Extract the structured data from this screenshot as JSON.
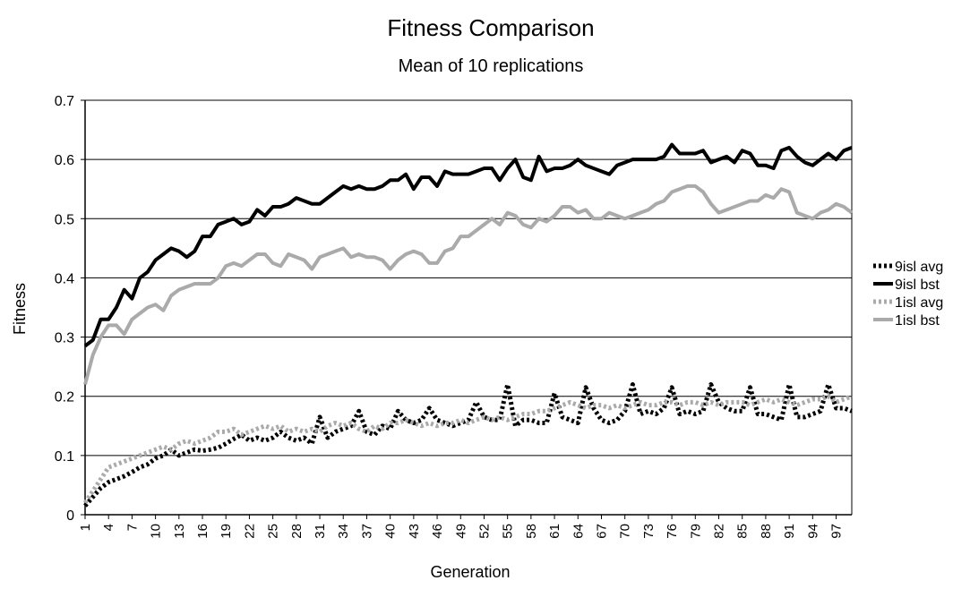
{
  "chart_data": {
    "type": "line",
    "title": "Fitness Comparison",
    "subtitle": "Mean of 10 replications",
    "xlabel": "Generation",
    "ylabel": "Fitness",
    "ylim": [
      0,
      0.7
    ],
    "yticks": [
      "0",
      "0.1",
      "0.2",
      "0.3",
      "0.4",
      "0.5",
      "0.6",
      "0.7"
    ],
    "x_range": [
      1,
      99
    ],
    "xtick_labels": [
      "1",
      "4",
      "7",
      "10",
      "13",
      "16",
      "19",
      "22",
      "25",
      "28",
      "31",
      "34",
      "37",
      "40",
      "43",
      "46",
      "49",
      "52",
      "55",
      "58",
      "61",
      "64",
      "67",
      "70",
      "73",
      "76",
      "79",
      "82",
      "85",
      "88",
      "91",
      "94",
      "97"
    ],
    "grid": "horizontal",
    "legend_position": "right",
    "series": [
      {
        "name": "9isl avg",
        "color": "#000000",
        "style": "dotted",
        "values": [
          0.015,
          0.03,
          0.045,
          0.055,
          0.06,
          0.065,
          0.072,
          0.08,
          0.085,
          0.095,
          0.1,
          0.11,
          0.1,
          0.105,
          0.11,
          0.108,
          0.11,
          0.113,
          0.12,
          0.128,
          0.135,
          0.125,
          0.13,
          0.125,
          0.13,
          0.14,
          0.13,
          0.125,
          0.13,
          0.12,
          0.165,
          0.13,
          0.14,
          0.145,
          0.15,
          0.175,
          0.14,
          0.135,
          0.15,
          0.145,
          0.175,
          0.16,
          0.155,
          0.16,
          0.18,
          0.16,
          0.155,
          0.15,
          0.155,
          0.16,
          0.19,
          0.165,
          0.16,
          0.16,
          0.22,
          0.15,
          0.16,
          0.16,
          0.155,
          0.155,
          0.205,
          0.165,
          0.16,
          0.155,
          0.215,
          0.18,
          0.16,
          0.155,
          0.16,
          0.175,
          0.22,
          0.17,
          0.175,
          0.17,
          0.18,
          0.215,
          0.17,
          0.175,
          0.17,
          0.175,
          0.22,
          0.19,
          0.18,
          0.175,
          0.175,
          0.215,
          0.17,
          0.17,
          0.165,
          0.16,
          0.22,
          0.165,
          0.165,
          0.17,
          0.175,
          0.22,
          0.18,
          0.18,
          0.175
        ]
      },
      {
        "name": "9isl bst",
        "color": "#000000",
        "style": "solid",
        "values": [
          0.285,
          0.295,
          0.33,
          0.33,
          0.35,
          0.38,
          0.365,
          0.4,
          0.41,
          0.43,
          0.44,
          0.45,
          0.445,
          0.435,
          0.445,
          0.47,
          0.47,
          0.49,
          0.495,
          0.5,
          0.49,
          0.495,
          0.515,
          0.505,
          0.52,
          0.52,
          0.525,
          0.535,
          0.53,
          0.525,
          0.525,
          0.535,
          0.545,
          0.555,
          0.55,
          0.555,
          0.55,
          0.55,
          0.555,
          0.565,
          0.565,
          0.575,
          0.55,
          0.57,
          0.57,
          0.555,
          0.58,
          0.575,
          0.575,
          0.575,
          0.58,
          0.585,
          0.585,
          0.565,
          0.585,
          0.6,
          0.57,
          0.565,
          0.605,
          0.58,
          0.585,
          0.585,
          0.59,
          0.6,
          0.59,
          0.585,
          0.58,
          0.575,
          0.59,
          0.595,
          0.6,
          0.6,
          0.6,
          0.6,
          0.605,
          0.625,
          0.61,
          0.61,
          0.61,
          0.615,
          0.595,
          0.6,
          0.605,
          0.595,
          0.615,
          0.61,
          0.59,
          0.59,
          0.585,
          0.615,
          0.62,
          0.605,
          0.595,
          0.59,
          0.6,
          0.61,
          0.6,
          0.615,
          0.62
        ]
      },
      {
        "name": "1isl avg",
        "color": "#aaaaaa",
        "style": "dotted",
        "values": [
          0.02,
          0.04,
          0.06,
          0.08,
          0.085,
          0.09,
          0.095,
          0.1,
          0.105,
          0.11,
          0.115,
          0.11,
          0.12,
          0.125,
          0.12,
          0.125,
          0.13,
          0.14,
          0.14,
          0.145,
          0.135,
          0.14,
          0.145,
          0.15,
          0.145,
          0.15,
          0.14,
          0.145,
          0.14,
          0.145,
          0.14,
          0.15,
          0.155,
          0.15,
          0.155,
          0.145,
          0.14,
          0.15,
          0.145,
          0.155,
          0.155,
          0.16,
          0.155,
          0.15,
          0.155,
          0.15,
          0.155,
          0.155,
          0.16,
          0.155,
          0.16,
          0.165,
          0.16,
          0.165,
          0.16,
          0.165,
          0.17,
          0.17,
          0.175,
          0.175,
          0.18,
          0.185,
          0.19,
          0.185,
          0.18,
          0.185,
          0.185,
          0.18,
          0.185,
          0.18,
          0.185,
          0.19,
          0.185,
          0.185,
          0.19,
          0.19,
          0.185,
          0.19,
          0.19,
          0.185,
          0.19,
          0.185,
          0.19,
          0.19,
          0.19,
          0.185,
          0.19,
          0.195,
          0.19,
          0.195,
          0.19,
          0.185,
          0.19,
          0.195,
          0.195,
          0.2,
          0.19,
          0.195,
          0.2
        ]
      },
      {
        "name": "1isl bst",
        "color": "#aaaaaa",
        "style": "solid",
        "values": [
          0.22,
          0.27,
          0.3,
          0.32,
          0.32,
          0.305,
          0.33,
          0.34,
          0.35,
          0.355,
          0.345,
          0.37,
          0.38,
          0.385,
          0.39,
          0.39,
          0.39,
          0.4,
          0.42,
          0.425,
          0.42,
          0.43,
          0.44,
          0.44,
          0.425,
          0.42,
          0.44,
          0.435,
          0.43,
          0.415,
          0.435,
          0.44,
          0.445,
          0.45,
          0.435,
          0.44,
          0.435,
          0.435,
          0.43,
          0.415,
          0.43,
          0.44,
          0.445,
          0.44,
          0.425,
          0.425,
          0.445,
          0.45,
          0.47,
          0.47,
          0.48,
          0.49,
          0.5,
          0.49,
          0.51,
          0.505,
          0.49,
          0.485,
          0.5,
          0.495,
          0.505,
          0.52,
          0.52,
          0.51,
          0.515,
          0.5,
          0.5,
          0.51,
          0.505,
          0.5,
          0.505,
          0.51,
          0.515,
          0.525,
          0.53,
          0.545,
          0.55,
          0.555,
          0.555,
          0.545,
          0.525,
          0.51,
          0.515,
          0.52,
          0.525,
          0.53,
          0.53,
          0.54,
          0.535,
          0.55,
          0.545,
          0.51,
          0.505,
          0.5,
          0.51,
          0.515,
          0.525,
          0.52,
          0.51
        ]
      }
    ]
  }
}
